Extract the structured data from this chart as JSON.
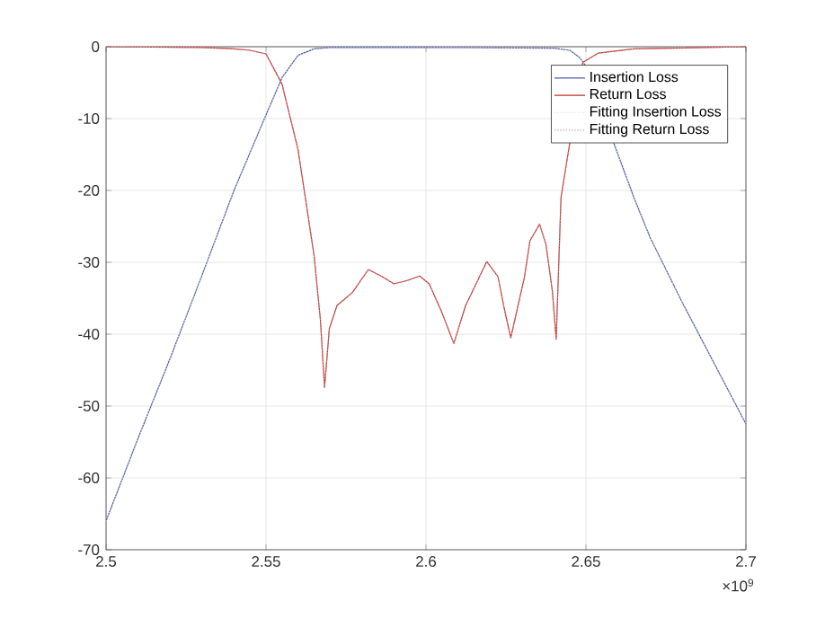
{
  "chart_data": {
    "type": "line",
    "xlim": [
      2.5,
      2.7
    ],
    "ylim": [
      -70,
      0
    ],
    "xticks": [
      2.5,
      2.55,
      2.6,
      2.65,
      2.7
    ],
    "yticks": [
      -70,
      -60,
      -50,
      -40,
      -30,
      -20,
      -10,
      0
    ],
    "grid": true,
    "legend": "top right",
    "marker": "none",
    "annotations": [
      "×10$^{9}$"
    ],
    "series": [
      {
        "name": "Insertion Loss",
        "color": "#4a5aa8",
        "line_style": "solid",
        "x": [
          2.5,
          2.51,
          2.52,
          2.53,
          2.54,
          2.55,
          2.555,
          2.56,
          2.565,
          2.57,
          2.6,
          2.64,
          2.645,
          2.648,
          2.65,
          2.66,
          2.665,
          2.67,
          2.675,
          2.68,
          2.69,
          2.7
        ],
        "values": [
          -66,
          -54.5,
          -43.4,
          -31.8,
          -20,
          -9.5,
          -4.3,
          -1.2,
          -0.3,
          -0.1,
          -0.1,
          -0.2,
          -0.5,
          -1.5,
          -2.7,
          -15,
          -21,
          -26.5,
          -31,
          -35.5,
          -44,
          -52.5
        ]
      },
      {
        "name": "Return Loss",
        "color": "#c0302c",
        "line_style": "solid",
        "x": [
          2.5,
          2.53,
          2.54,
          2.545,
          2.55,
          2.555,
          2.56,
          2.565,
          2.567,
          2.5683,
          2.5698,
          2.5722,
          2.577,
          2.582,
          2.5863,
          2.59,
          2.5944,
          2.598,
          2.601,
          2.605,
          2.6087,
          2.6124,
          2.6135,
          2.619,
          2.6225,
          2.6245,
          2.6265,
          2.6308,
          2.6325,
          2.6355,
          2.6375,
          2.6395,
          2.6407,
          2.6422,
          2.6435,
          2.6448,
          2.649,
          2.6538,
          2.665,
          2.7
        ],
        "values": [
          0,
          -0.1,
          -0.3,
          -0.5,
          -1,
          -5.2,
          -14.3,
          -29,
          -38,
          -47.4,
          -39.2,
          -36,
          -34.2,
          -31,
          -32,
          -33,
          -32.5,
          -31.9,
          -33,
          -37,
          -41.3,
          -36,
          -35,
          -29.9,
          -32,
          -36.5,
          -40.5,
          -32,
          -27,
          -24.7,
          -27.5,
          -34,
          -40.7,
          -21,
          null,
          null,
          -2.2,
          -0.9,
          -0.3,
          0
        ]
      },
      {
        "name": "Fitting Insertion Loss",
        "color": "#d8d8d8",
        "line_style": "dotted",
        "x": [
          2.5,
          2.51,
          2.52,
          2.53,
          2.54,
          2.55,
          2.555,
          2.56,
          2.565,
          2.57,
          2.6,
          2.64,
          2.645,
          2.648,
          2.65,
          2.66,
          2.665,
          2.67,
          2.675,
          2.68,
          2.69,
          2.7
        ],
        "values": [
          -66,
          -54.5,
          -43.4,
          -31.8,
          -20,
          -9.5,
          -4.3,
          -1.2,
          -0.3,
          -0.1,
          -0.1,
          -0.2,
          -0.5,
          -1.5,
          -2.7,
          -15,
          -21,
          -26.5,
          -31,
          -35.5,
          -44,
          -52.5
        ]
      },
      {
        "name": "Fitting Return Loss",
        "color": "#c89a9a",
        "line_style": "dotted",
        "x": [
          2.5,
          2.53,
          2.54,
          2.545,
          2.55,
          2.555,
          2.56,
          2.565,
          2.567,
          2.5683,
          2.5698,
          2.5722,
          2.577,
          2.582,
          2.5863,
          2.59,
          2.5944,
          2.598,
          2.601,
          2.605,
          2.6087,
          2.6124,
          2.6135,
          2.619,
          2.6225,
          2.6245,
          2.6265,
          2.6308,
          2.6325,
          2.6355,
          2.6375,
          2.6395,
          2.6407,
          2.6422,
          2.6435,
          2.6448,
          2.649,
          2.6538,
          2.665,
          2.7
        ],
        "values": [
          0,
          -0.1,
          -0.3,
          -0.5,
          -1,
          -5.2,
          -14.3,
          -29,
          -38,
          -47.4,
          -39.2,
          -36,
          -34.2,
          -31,
          -32,
          -33,
          -32.5,
          -31.9,
          -33,
          -37,
          -41.3,
          -36,
          -35,
          -29.9,
          -32,
          -36.5,
          -40.5,
          -32,
          -27,
          -24.7,
          -27.5,
          -34,
          -40.7,
          -21,
          null,
          null,
          -2.2,
          -0.9,
          -0.3,
          0
        ]
      }
    ]
  }
}
